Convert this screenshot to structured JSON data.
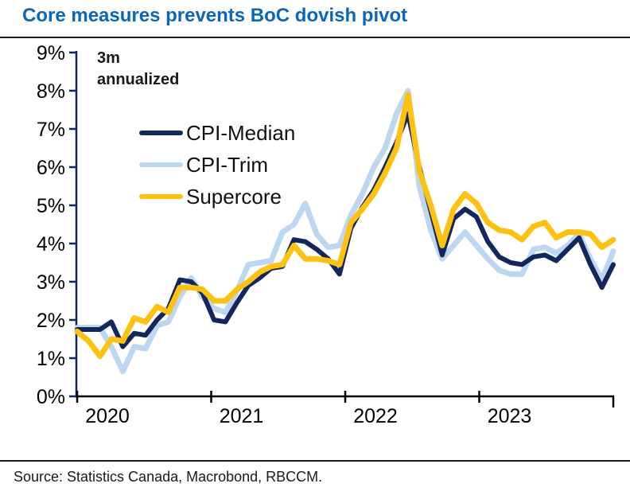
{
  "title": "Core measures prevents BoC dovish pivot",
  "annotation": "3m\nannualized",
  "source": "Source: Statistics Canada, Macrobond, RBCCM.",
  "colors": {
    "title": "#0A66B6",
    "rule": "#1a1a1a",
    "axis_y": "#13275D",
    "axis_x": "#000000",
    "tick_label": "#000000",
    "cpi_median": "#13275D",
    "cpi_trim": "#BDD7F2",
    "supercore": "#FDC112"
  },
  "chart_data": {
    "type": "line",
    "title": "Core measures prevents BoC dovish pivot",
    "ylabel": "",
    "xlabel": "",
    "ylim": [
      0,
      9
    ],
    "grid": false,
    "legend_position": "upper-left-inside",
    "y_tick_labels": [
      "0%",
      "1%",
      "2%",
      "3%",
      "4%",
      "5%",
      "6%",
      "7%",
      "8%",
      "9%"
    ],
    "x_tick_labels": [
      "2020",
      "2021",
      "2022",
      "2023"
    ],
    "x": [
      "2020-01",
      "2020-02",
      "2020-03",
      "2020-04",
      "2020-05",
      "2020-06",
      "2020-07",
      "2020-08",
      "2020-09",
      "2020-10",
      "2020-11",
      "2020-12",
      "2021-01",
      "2021-02",
      "2021-03",
      "2021-04",
      "2021-05",
      "2021-06",
      "2021-07",
      "2021-08",
      "2021-09",
      "2021-10",
      "2021-11",
      "2021-12",
      "2022-01",
      "2022-02",
      "2022-03",
      "2022-04",
      "2022-05",
      "2022-06",
      "2022-07",
      "2022-08",
      "2022-09",
      "2022-10",
      "2022-11",
      "2022-12",
      "2023-01",
      "2023-02",
      "2023-03",
      "2023-04",
      "2023-05",
      "2023-06",
      "2023-07",
      "2023-08",
      "2023-09",
      "2023-10",
      "2023-11",
      "2023-12"
    ],
    "series": [
      {
        "name": "CPI-Median",
        "color": "#13275D",
        "values": [
          1.75,
          1.75,
          1.75,
          1.95,
          1.3,
          1.65,
          1.6,
          2.0,
          2.3,
          3.05,
          3.0,
          2.7,
          2.0,
          1.95,
          2.45,
          2.9,
          3.1,
          3.35,
          3.4,
          4.1,
          4.05,
          3.85,
          3.6,
          3.2,
          4.4,
          4.95,
          5.4,
          6.0,
          6.65,
          7.4,
          6.0,
          4.85,
          3.7,
          4.65,
          4.9,
          4.7,
          4.05,
          3.65,
          3.5,
          3.45,
          3.65,
          3.7,
          3.55,
          3.85,
          4.15,
          3.45,
          2.85,
          3.45
        ]
      },
      {
        "name": "CPI-Trim",
        "color": "#BDD7F2",
        "values": [
          1.8,
          1.8,
          1.8,
          1.3,
          0.65,
          1.3,
          1.25,
          1.85,
          1.95,
          2.6,
          3.1,
          2.6,
          2.3,
          2.2,
          2.75,
          3.45,
          3.5,
          3.55,
          4.3,
          4.5,
          5.05,
          4.25,
          3.9,
          3.95,
          4.75,
          5.3,
          6.0,
          6.5,
          7.4,
          8.0,
          5.5,
          4.35,
          3.6,
          3.95,
          4.3,
          3.95,
          3.6,
          3.3,
          3.2,
          3.2,
          3.85,
          3.9,
          3.75,
          3.95,
          4.25,
          3.6,
          3.05,
          3.8
        ]
      },
      {
        "name": "Supercore",
        "color": "#FDC112",
        "values": [
          1.7,
          1.45,
          1.05,
          1.5,
          1.45,
          2.05,
          1.95,
          2.35,
          2.2,
          2.85,
          2.85,
          2.8,
          2.5,
          2.5,
          2.8,
          3.0,
          3.25,
          3.4,
          3.45,
          3.95,
          3.6,
          3.6,
          3.55,
          3.45,
          4.55,
          4.9,
          5.3,
          5.85,
          6.5,
          7.9,
          5.9,
          5.0,
          3.95,
          4.9,
          5.3,
          5.05,
          4.55,
          4.35,
          4.3,
          4.1,
          4.45,
          4.55,
          4.15,
          4.3,
          4.3,
          4.25,
          3.9,
          4.1
        ]
      }
    ]
  }
}
